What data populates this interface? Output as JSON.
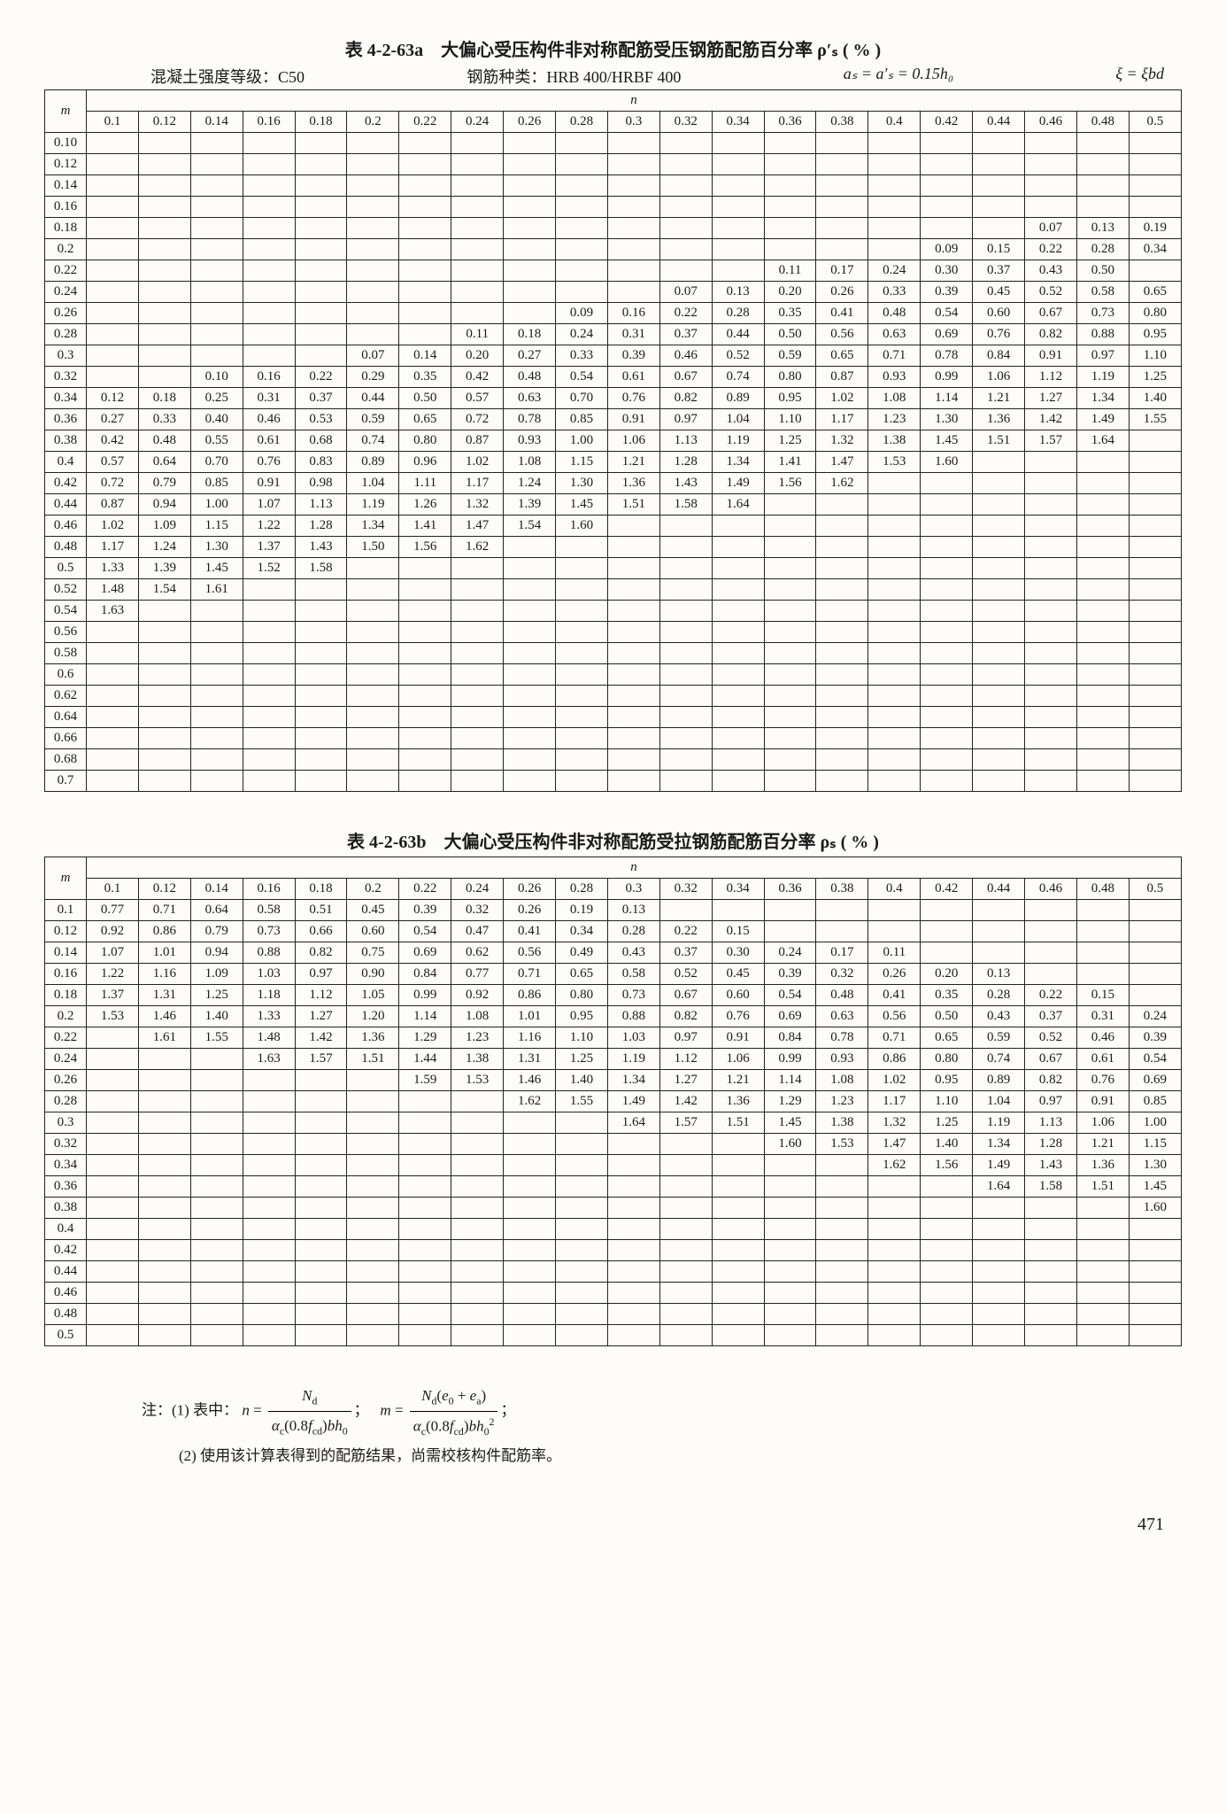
{
  "tableA": {
    "title": "表 4-2-63a　大偏心受压构件非对称配筋受压钢筋配筋百分率 ρ′ₛ ( % )",
    "subline": {
      "concrete": "混凝土强度等级：C50",
      "rebar": "钢筋种类：HRB 400/HRBF 400",
      "eq1": "aₛ = a′ₛ = 0.15h₀",
      "eq2": "ξ = ξbd"
    },
    "n_header": "n",
    "m_label": "m",
    "n_cols": [
      "0.1",
      "0.12",
      "0.14",
      "0.16",
      "0.18",
      "0.2",
      "0.22",
      "0.24",
      "0.26",
      "0.28",
      "0.3",
      "0.32",
      "0.34",
      "0.36",
      "0.38",
      "0.4",
      "0.42",
      "0.44",
      "0.46",
      "0.48",
      "0.5"
    ],
    "m_rows": [
      "0.10",
      "0.12",
      "0.14",
      "0.16",
      "0.18",
      "0.2",
      "0.22",
      "0.24",
      "0.26",
      "0.28",
      "0.3",
      "0.32",
      "0.34",
      "0.36",
      "0.38",
      "0.4",
      "0.42",
      "0.44",
      "0.46",
      "0.48",
      "0.5",
      "0.52",
      "0.54",
      "0.56",
      "0.58",
      "0.6",
      "0.62",
      "0.64",
      "0.66",
      "0.68",
      "0.7"
    ],
    "data": {
      "0.18": {
        "0.46": "0.07",
        "0.48": "0.13",
        "0.5": "0.19"
      },
      "0.2": {
        "0.42": "0.09",
        "0.44": "0.15",
        "0.46": "0.22",
        "0.48": "0.28",
        "0.5": "0.34"
      },
      "0.22": {
        "0.36": "0.11",
        "0.38": "0.17",
        "0.4": "0.24",
        "0.42": "0.30",
        "0.44": "0.37",
        "0.46": "0.43",
        "0.48": "0.50"
      },
      "0.24": {
        "0.32": "0.07",
        "0.34": "0.13",
        "0.36": "0.20",
        "0.38": "0.26",
        "0.4": "0.33",
        "0.42": "0.39",
        "0.44": "0.45",
        "0.46": "0.52",
        "0.48": "0.58",
        "0.5": "0.65"
      },
      "0.26": {
        "0.28": "0.09",
        "0.3": "0.16",
        "0.32": "0.22",
        "0.34": "0.28",
        "0.36": "0.35",
        "0.38": "0.41",
        "0.4": "0.48",
        "0.42": "0.54",
        "0.44": "0.60",
        "0.46": "0.67",
        "0.48": "0.73",
        "0.5": "0.80"
      },
      "0.28": {
        "0.24": "0.11",
        "0.26": "0.18",
        "0.28": "0.24",
        "0.3": "0.31",
        "0.32": "0.37",
        "0.34": "0.44",
        "0.36": "0.50",
        "0.38": "0.56",
        "0.4": "0.63",
        "0.42": "0.69",
        "0.44": "0.76",
        "0.46": "0.82",
        "0.48": "0.88",
        "0.5": "0.95"
      },
      "0.3": {
        "0.2": "0.07",
        "0.22": "0.14",
        "0.24": "0.20",
        "0.26": "0.27",
        "0.28": "0.33",
        "0.3": "0.39",
        "0.32": "0.46",
        "0.34": "0.52",
        "0.36": "0.59",
        "0.38": "0.65",
        "0.4": "0.71",
        "0.42": "0.78",
        "0.44": "0.84",
        "0.46": "0.91",
        "0.48": "0.97",
        "0.5": "1.10"
      },
      "0.32": {
        "0.14": "0.10",
        "0.16": "0.16",
        "0.18": "0.22",
        "0.2": "0.29",
        "0.22": "0.35",
        "0.24": "0.42",
        "0.26": "0.48",
        "0.28": "0.54",
        "0.3": "0.61",
        "0.32": "0.67",
        "0.34": "0.74",
        "0.36": "0.80",
        "0.38": "0.87",
        "0.4": "0.93",
        "0.42": "0.99",
        "0.44": "1.06",
        "0.46": "1.12",
        "0.48": "1.19",
        "0.5": "1.25"
      },
      "0.34": {
        "0.1": "0.12",
        "0.12": "0.18",
        "0.14": "0.25",
        "0.16": "0.31",
        "0.18": "0.37",
        "0.2": "0.44",
        "0.22": "0.50",
        "0.24": "0.57",
        "0.26": "0.63",
        "0.28": "0.70",
        "0.3": "0.76",
        "0.32": "0.82",
        "0.34": "0.89",
        "0.36": "0.95",
        "0.38": "1.02",
        "0.4": "1.08",
        "0.42": "1.14",
        "0.44": "1.21",
        "0.46": "1.27",
        "0.48": "1.34",
        "0.5": "1.40"
      },
      "0.36": {
        "0.1": "0.27",
        "0.12": "0.33",
        "0.14": "0.40",
        "0.16": "0.46",
        "0.18": "0.53",
        "0.2": "0.59",
        "0.22": "0.65",
        "0.24": "0.72",
        "0.26": "0.78",
        "0.28": "0.85",
        "0.3": "0.91",
        "0.32": "0.97",
        "0.34": "1.04",
        "0.36": "1.10",
        "0.38": "1.17",
        "0.4": "1.23",
        "0.42": "1.30",
        "0.44": "1.36",
        "0.46": "1.42",
        "0.48": "1.49",
        "0.5": "1.55"
      },
      "0.38": {
        "0.1": "0.42",
        "0.12": "0.48",
        "0.14": "0.55",
        "0.16": "0.61",
        "0.18": "0.68",
        "0.2": "0.74",
        "0.22": "0.80",
        "0.24": "0.87",
        "0.26": "0.93",
        "0.28": "1.00",
        "0.3": "1.06",
        "0.32": "1.13",
        "0.34": "1.19",
        "0.36": "1.25",
        "0.38": "1.32",
        "0.4": "1.38",
        "0.42": "1.45",
        "0.44": "1.51",
        "0.46": "1.57",
        "0.48": "1.64"
      },
      "0.4": {
        "0.1": "0.57",
        "0.12": "0.64",
        "0.14": "0.70",
        "0.16": "0.76",
        "0.18": "0.83",
        "0.2": "0.89",
        "0.22": "0.96",
        "0.24": "1.02",
        "0.26": "1.08",
        "0.28": "1.15",
        "0.3": "1.21",
        "0.32": "1.28",
        "0.34": "1.34",
        "0.36": "1.41",
        "0.38": "1.47",
        "0.4": "1.53",
        "0.42": "1.60"
      },
      "0.42": {
        "0.1": "0.72",
        "0.12": "0.79",
        "0.14": "0.85",
        "0.16": "0.91",
        "0.18": "0.98",
        "0.2": "1.04",
        "0.22": "1.11",
        "0.24": "1.17",
        "0.26": "1.24",
        "0.28": "1.30",
        "0.3": "1.36",
        "0.32": "1.43",
        "0.34": "1.49",
        "0.36": "1.56",
        "0.38": "1.62"
      },
      "0.44": {
        "0.1": "0.87",
        "0.12": "0.94",
        "0.14": "1.00",
        "0.16": "1.07",
        "0.18": "1.13",
        "0.2": "1.19",
        "0.22": "1.26",
        "0.24": "1.32",
        "0.26": "1.39",
        "0.28": "1.45",
        "0.3": "1.51",
        "0.32": "1.58",
        "0.34": "1.64"
      },
      "0.46": {
        "0.1": "1.02",
        "0.12": "1.09",
        "0.14": "1.15",
        "0.16": "1.22",
        "0.18": "1.28",
        "0.2": "1.34",
        "0.22": "1.41",
        "0.24": "1.47",
        "0.26": "1.54",
        "0.28": "1.60"
      },
      "0.48": {
        "0.1": "1.17",
        "0.12": "1.24",
        "0.14": "1.30",
        "0.16": "1.37",
        "0.18": "1.43",
        "0.2": "1.50",
        "0.22": "1.56",
        "0.24": "1.62"
      },
      "0.5": {
        "0.1": "1.33",
        "0.12": "1.39",
        "0.14": "1.45",
        "0.16": "1.52",
        "0.18": "1.58"
      },
      "0.52": {
        "0.1": "1.48",
        "0.12": "1.54",
        "0.14": "1.61"
      },
      "0.54": {
        "0.1": "1.63"
      }
    }
  },
  "tableB": {
    "title": "表 4-2-63b　大偏心受压构件非对称配筋受拉钢筋配筋百分率 ρₛ ( % )",
    "n_header": "n",
    "m_label": "m",
    "n_cols": [
      "0.1",
      "0.12",
      "0.14",
      "0.16",
      "0.18",
      "0.2",
      "0.22",
      "0.24",
      "0.26",
      "0.28",
      "0.3",
      "0.32",
      "0.34",
      "0.36",
      "0.38",
      "0.4",
      "0.42",
      "0.44",
      "0.46",
      "0.48",
      "0.5"
    ],
    "m_rows": [
      "0.1",
      "0.12",
      "0.14",
      "0.16",
      "0.18",
      "0.2",
      "0.22",
      "0.24",
      "0.26",
      "0.28",
      "0.3",
      "0.32",
      "0.34",
      "0.36",
      "0.38",
      "0.4",
      "0.42",
      "0.44",
      "0.46",
      "0.48",
      "0.5"
    ],
    "data": {
      "0.1": {
        "0.1": "0.77",
        "0.12": "0.71",
        "0.14": "0.64",
        "0.16": "0.58",
        "0.18": "0.51",
        "0.2": "0.45",
        "0.22": "0.39",
        "0.24": "0.32",
        "0.26": "0.26",
        "0.28": "0.19",
        "0.3": "0.13"
      },
      "0.12": {
        "0.1": "0.92",
        "0.12": "0.86",
        "0.14": "0.79",
        "0.16": "0.73",
        "0.18": "0.66",
        "0.2": "0.60",
        "0.22": "0.54",
        "0.24": "0.47",
        "0.26": "0.41",
        "0.28": "0.34",
        "0.3": "0.28",
        "0.32": "0.22",
        "0.34": "0.15"
      },
      "0.14": {
        "0.1": "1.07",
        "0.12": "1.01",
        "0.14": "0.94",
        "0.16": "0.88",
        "0.18": "0.82",
        "0.2": "0.75",
        "0.22": "0.69",
        "0.24": "0.62",
        "0.26": "0.56",
        "0.28": "0.49",
        "0.3": "0.43",
        "0.32": "0.37",
        "0.34": "0.30",
        "0.36": "0.24",
        "0.38": "0.17",
        "0.4": "0.11"
      },
      "0.16": {
        "0.1": "1.22",
        "0.12": "1.16",
        "0.14": "1.09",
        "0.16": "1.03",
        "0.18": "0.97",
        "0.2": "0.90",
        "0.22": "0.84",
        "0.24": "0.77",
        "0.26": "0.71",
        "0.28": "0.65",
        "0.3": "0.58",
        "0.32": "0.52",
        "0.34": "0.45",
        "0.36": "0.39",
        "0.38": "0.32",
        "0.4": "0.26",
        "0.42": "0.20",
        "0.44": "0.13"
      },
      "0.18": {
        "0.1": "1.37",
        "0.12": "1.31",
        "0.14": "1.25",
        "0.16": "1.18",
        "0.18": "1.12",
        "0.2": "1.05",
        "0.22": "0.99",
        "0.24": "0.92",
        "0.26": "0.86",
        "0.28": "0.80",
        "0.3": "0.73",
        "0.32": "0.67",
        "0.34": "0.60",
        "0.36": "0.54",
        "0.38": "0.48",
        "0.4": "0.41",
        "0.42": "0.35",
        "0.44": "0.28",
        "0.46": "0.22",
        "0.48": "0.15"
      },
      "0.2": {
        "0.1": "1.53",
        "0.12": "1.46",
        "0.14": "1.40",
        "0.16": "1.33",
        "0.18": "1.27",
        "0.2": "1.20",
        "0.22": "1.14",
        "0.24": "1.08",
        "0.26": "1.01",
        "0.28": "0.95",
        "0.3": "0.88",
        "0.32": "0.82",
        "0.34": "0.76",
        "0.36": "0.69",
        "0.38": "0.63",
        "0.4": "0.56",
        "0.42": "0.50",
        "0.44": "0.43",
        "0.46": "0.37",
        "0.48": "0.31",
        "0.5": "0.24"
      },
      "0.22": {
        "0.12": "1.61",
        "0.14": "1.55",
        "0.16": "1.48",
        "0.18": "1.42",
        "0.2": "1.36",
        "0.22": "1.29",
        "0.24": "1.23",
        "0.26": "1.16",
        "0.28": "1.10",
        "0.3": "1.03",
        "0.32": "0.97",
        "0.34": "0.91",
        "0.36": "0.84",
        "0.38": "0.78",
        "0.4": "0.71",
        "0.42": "0.65",
        "0.44": "0.59",
        "0.46": "0.52",
        "0.48": "0.46",
        "0.5": "0.39"
      },
      "0.24": {
        "0.16": "1.63",
        "0.18": "1.57",
        "0.2": "1.51",
        "0.22": "1.44",
        "0.24": "1.38",
        "0.26": "1.31",
        "0.28": "1.25",
        "0.3": "1.19",
        "0.32": "1.12",
        "0.34": "1.06",
        "0.36": "0.99",
        "0.38": "0.93",
        "0.4": "0.86",
        "0.42": "0.80",
        "0.44": "0.74",
        "0.46": "0.67",
        "0.48": "0.61",
        "0.5": "0.54"
      },
      "0.26": {
        "0.22": "1.59",
        "0.24": "1.53",
        "0.26": "1.46",
        "0.28": "1.40",
        "0.3": "1.34",
        "0.32": "1.27",
        "0.34": "1.21",
        "0.36": "1.14",
        "0.38": "1.08",
        "0.4": "1.02",
        "0.42": "0.95",
        "0.44": "0.89",
        "0.46": "0.82",
        "0.48": "0.76",
        "0.5": "0.69"
      },
      "0.28": {
        "0.26": "1.62",
        "0.28": "1.55",
        "0.3": "1.49",
        "0.32": "1.42",
        "0.34": "1.36",
        "0.36": "1.29",
        "0.38": "1.23",
        "0.4": "1.17",
        "0.42": "1.10",
        "0.44": "1.04",
        "0.46": "0.97",
        "0.48": "0.91",
        "0.5": "0.85"
      },
      "0.3": {
        "0.3": "1.64",
        "0.32": "1.57",
        "0.34": "1.51",
        "0.36": "1.45",
        "0.38": "1.38",
        "0.4": "1.32",
        "0.42": "1.25",
        "0.44": "1.19",
        "0.46": "1.13",
        "0.48": "1.06",
        "0.5": "1.00"
      },
      "0.32": {
        "0.36": "1.60",
        "0.38": "1.53",
        "0.4": "1.47",
        "0.42": "1.40",
        "0.44": "1.34",
        "0.46": "1.28",
        "0.48": "1.21",
        "0.5": "1.15"
      },
      "0.34": {
        "0.4": "1.62",
        "0.42": "1.56",
        "0.44": "1.49",
        "0.46": "1.43",
        "0.48": "1.36",
        "0.5": "1.30"
      },
      "0.36": {
        "0.44": "1.64",
        "0.46": "1.58",
        "0.48": "1.51",
        "0.5": "1.45"
      },
      "0.38": {
        "0.5": "1.60"
      }
    }
  },
  "notes": {
    "label": "注：",
    "n1_prefix": "(1) 表中：",
    "n2": "(2) 使用该计算表得到的配筋结果，尚需校核构件配筋率。"
  },
  "page_number": "471",
  "colors": {
    "bg": "#fdfcfa",
    "text": "#1a1a1a",
    "border": "#222"
  }
}
